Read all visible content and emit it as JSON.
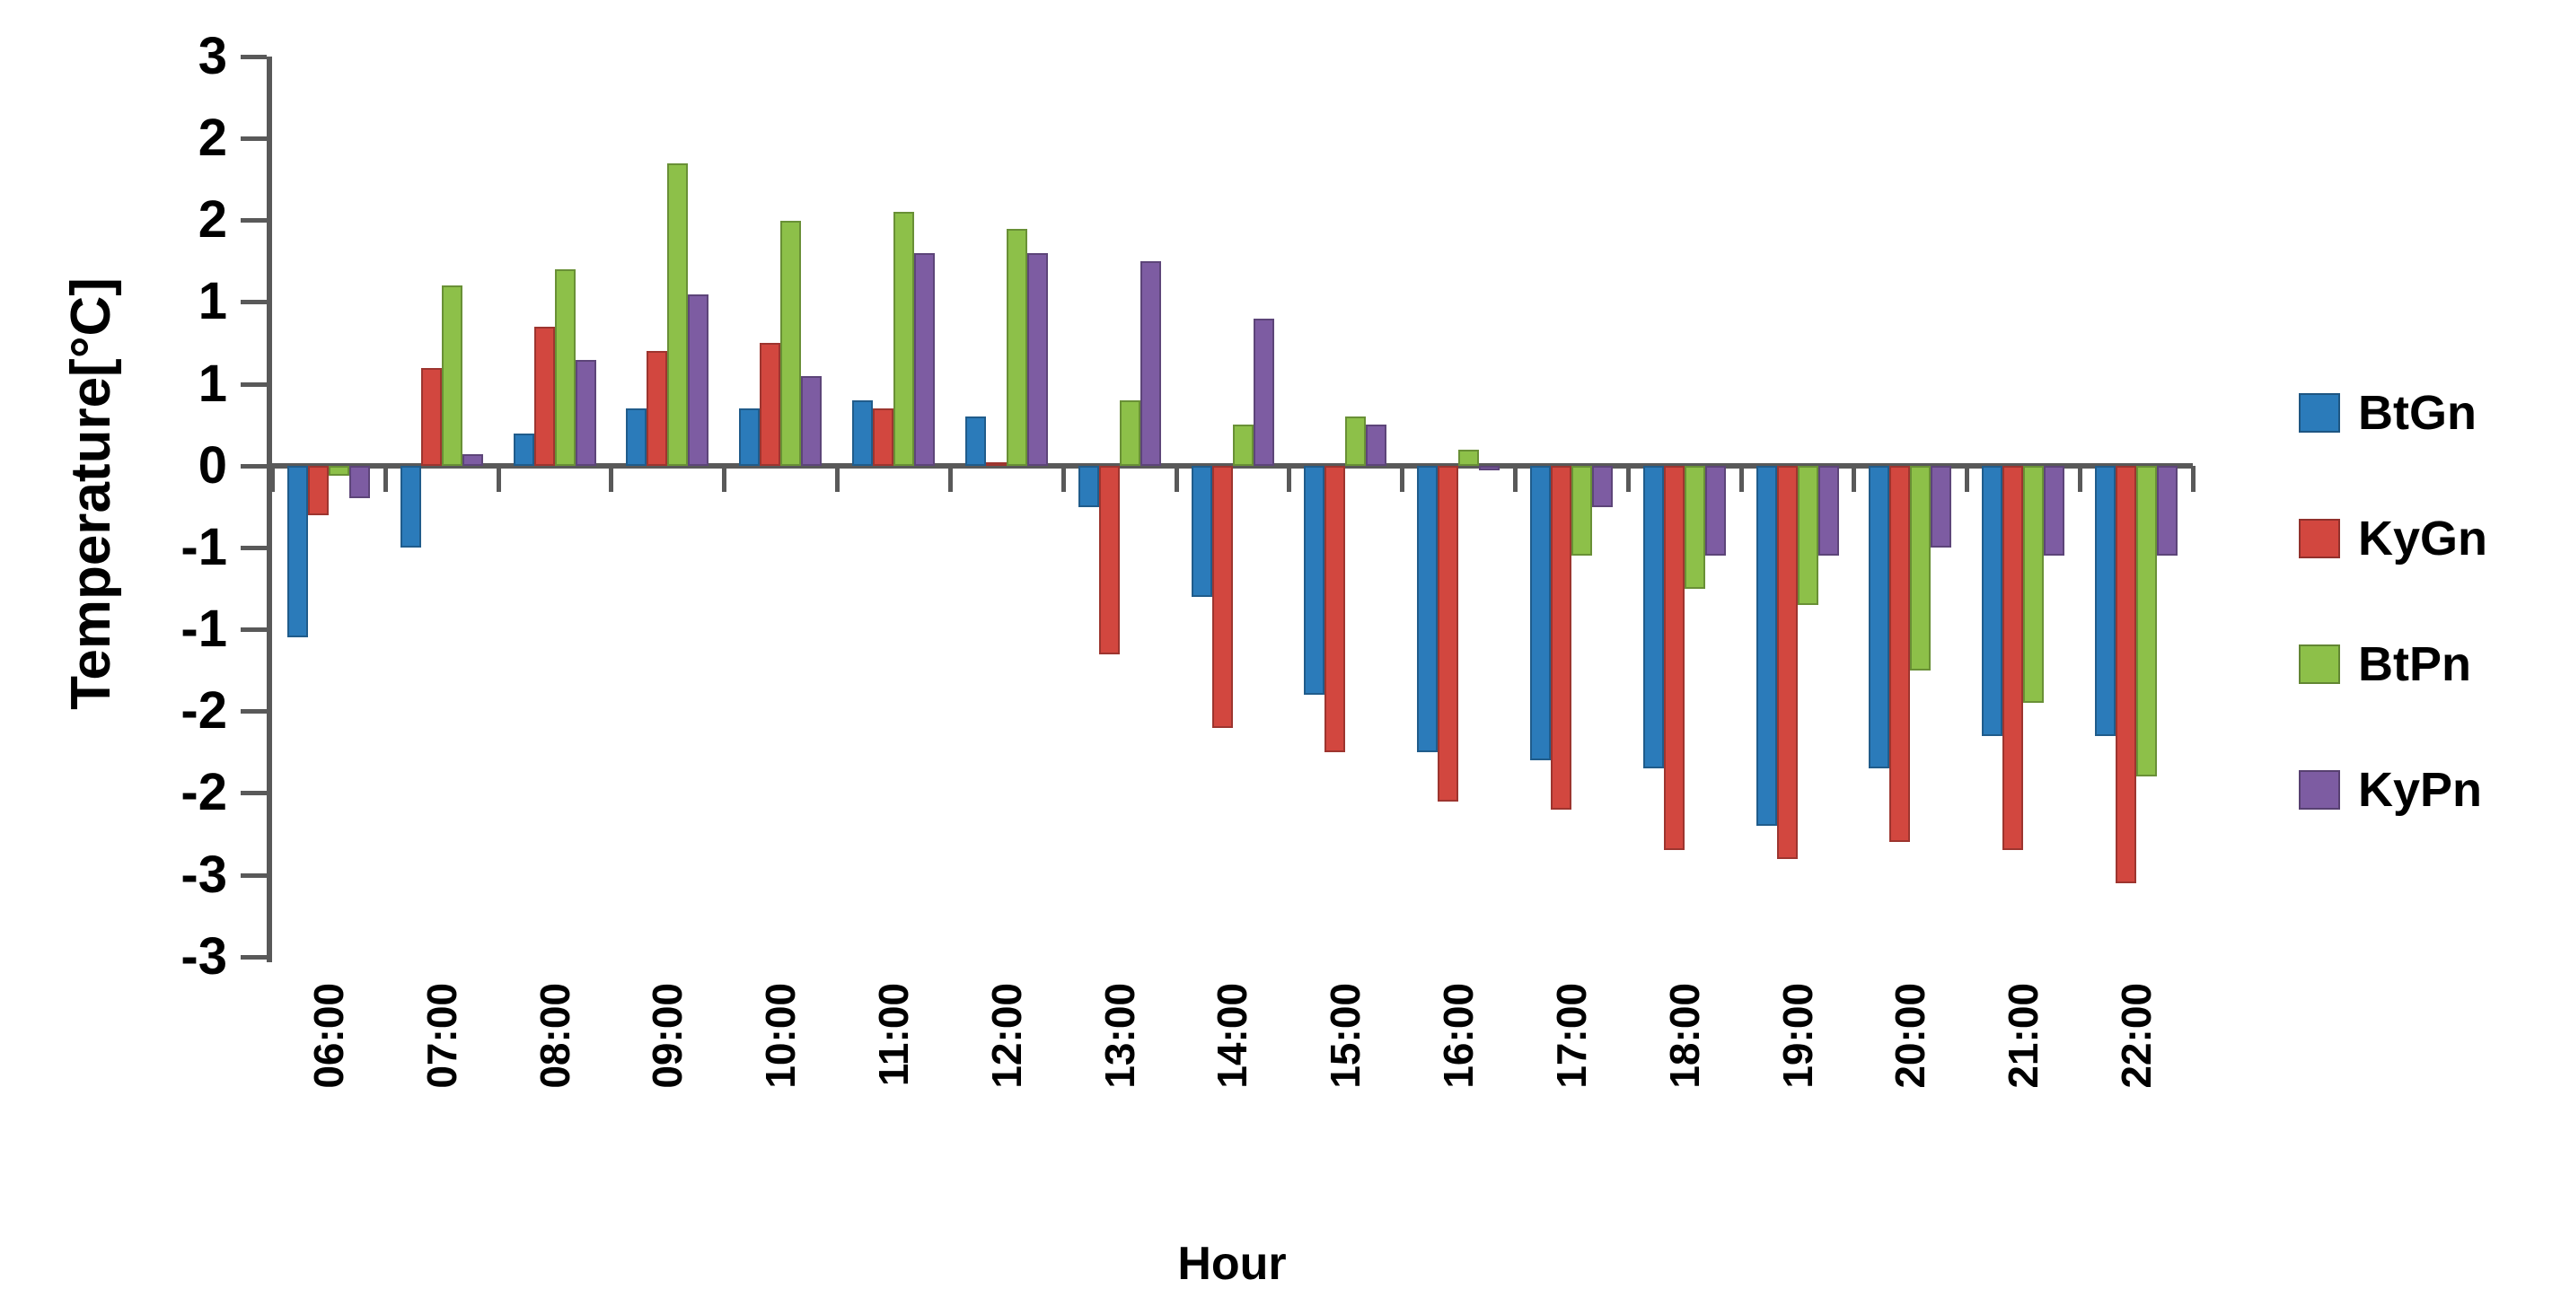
{
  "chart_data": {
    "type": "bar",
    "title": "",
    "xlabel": "Hour",
    "ylabel": "Temperature[°C]",
    "categories": [
      "06:00",
      "07:00",
      "08:00",
      "09:00",
      "10:00",
      "11:00",
      "12:00",
      "13:00",
      "14:00",
      "15:00",
      "16:00",
      "17:00",
      "18:00",
      "19:00",
      "20:00",
      "21:00",
      "22:00"
    ],
    "series": [
      {
        "name": "BtGn",
        "color": "#2B7BBA",
        "values": [
          -1.05,
          -0.5,
          0.2,
          0.35,
          0.35,
          0.4,
          0.3,
          -0.25,
          -0.8,
          -1.4,
          -1.75,
          -1.8,
          -1.85,
          -2.2,
          -1.85,
          -1.65,
          -1.65
        ]
      },
      {
        "name": "KyGn",
        "color": "#D2473F",
        "values": [
          -0.3,
          0.6,
          0.85,
          0.7,
          0.75,
          0.35,
          0.02,
          -1.15,
          -1.6,
          -1.75,
          -2.05,
          -2.1,
          -2.35,
          -2.4,
          -2.3,
          -2.35,
          -2.55
        ]
      },
      {
        "name": "BtPn",
        "color": "#8DC049",
        "values": [
          -0.06,
          1.1,
          1.2,
          1.85,
          1.5,
          1.55,
          1.45,
          0.4,
          0.25,
          0.3,
          0.1,
          -0.55,
          -0.75,
          -0.85,
          -1.25,
          -1.45,
          -1.9
        ]
      },
      {
        "name": "KyPn",
        "color": "#7D5CA2",
        "values": [
          -0.2,
          0.07,
          0.65,
          1.05,
          0.55,
          1.3,
          1.3,
          1.25,
          0.9,
          0.25,
          -0.03,
          -0.25,
          -0.55,
          -0.55,
          -0.5,
          -0.55,
          -0.55
        ]
      }
    ],
    "y_axis": {
      "range_top": 2.5,
      "range_bottom": -3.0,
      "tick_step": 0.5,
      "tick_labels": [
        "3",
        "2",
        "2",
        "1",
        "1",
        "0",
        "-1",
        "-1",
        "-2",
        "-2",
        "-3",
        "-3"
      ]
    },
    "legend_position": "right",
    "grid": false
  }
}
